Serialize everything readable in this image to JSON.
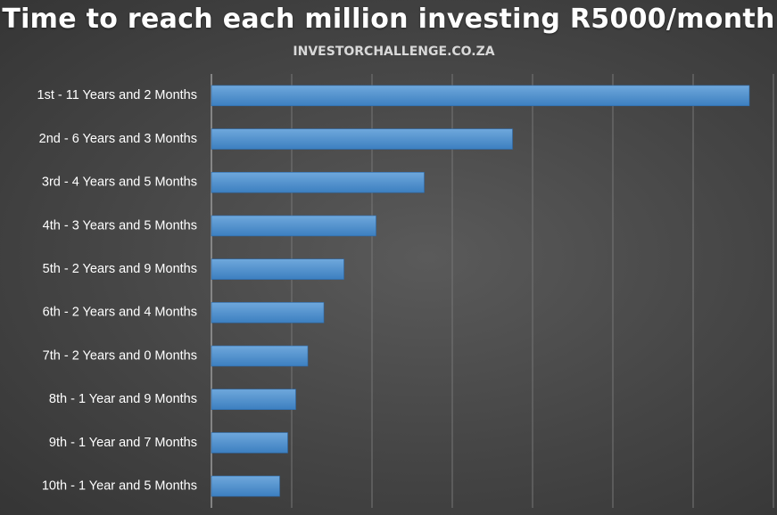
{
  "chart_data": {
    "type": "bar",
    "orientation": "horizontal",
    "title": "Time to reach each million investing R5000/month",
    "subtitle": "INVESTORCHALLENGE.CO.ZA",
    "xlabel": "",
    "ylabel": "",
    "categories": [
      "1st - 11 Years and 2 Months",
      "2nd - 6 Years and 3 Months",
      "3rd - 4 Years and 5 Months",
      "4th - 3 Years and 5 Months",
      "5th - 2 Years and 9 Months",
      "6th - 2 Years and 4 Months",
      "7th - 2 Years and 0 Months",
      "8th - 1 Year and 9 Months",
      "9th - 1 Year and 7 Months",
      "10th - 1 Year and 5 Months"
    ],
    "values": [
      134,
      75,
      53,
      41,
      33,
      28,
      24,
      21,
      19,
      17
    ],
    "value_unit": "months",
    "xlim": [
      0,
      140
    ],
    "grid": true,
    "legend": "none",
    "colors": {
      "bar": "#5b9bd5",
      "bar_dark": "#3c7fc0",
      "grid": "#767676",
      "text": "#ffffff"
    }
  }
}
